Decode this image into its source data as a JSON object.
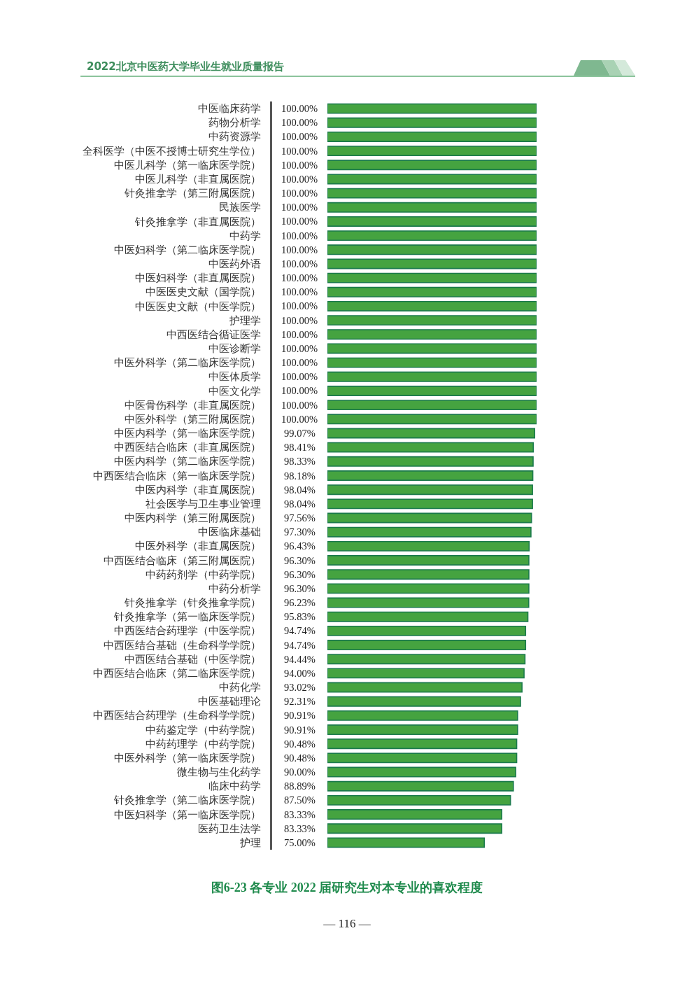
{
  "chart_data": {
    "type": "bar",
    "orientation": "horizontal",
    "title": "图6-23 各专业 2022 届研究生对本专业的喜欢程度",
    "annotations": [
      "2022北京中医药大学毕业生就业质量报告",
      "— 116 —"
    ],
    "categories": [
      "中医临床药学",
      "药物分析学",
      "中药资源学",
      "全科医学（中医不授博士研究生学位）",
      "中医儿科学（第一临床医学院）",
      "中医儿科学（非直属医院）",
      "针灸推拿学（第三附属医院）",
      "民族医学",
      "针灸推拿学（非直属医院）",
      "中药学",
      "中医妇科学（第二临床医学院）",
      "中医药外语",
      "中医妇科学（非直属医院）",
      "中医医史文献（国学院）",
      "中医医史文献（中医学院）",
      "护理学",
      "中西医结合循证医学",
      "中医诊断学",
      "中医外科学（第二临床医学院）",
      "中医体质学",
      "中医文化学",
      "中医骨伤科学（非直属医院）",
      "中医外科学（第三附属医院）",
      "中医内科学（第一临床医学院）",
      "中西医结合临床（非直属医院）",
      "中医内科学（第二临床医学院）",
      "中西医结合临床（第一临床医学院）",
      "中医内科学（非直属医院）",
      "社会医学与卫生事业管理",
      "中医内科学（第三附属医院）",
      "中医临床基础",
      "中医外科学（非直属医院）",
      "中西医结合临床（第三附属医院）",
      "中药药剂学（中药学院）",
      "中药分析学",
      "针灸推拿学（针灸推拿学院）",
      "针灸推拿学（第一临床医学院）",
      "中西医结合药理学（中医学院）",
      "中西医结合基础（生命科学学院）",
      "中西医结合基础（中医学院）",
      "中西医结合临床（第二临床医学院）",
      "中药化学",
      "中医基础理论",
      "中西医结合药理学（生命科学学院）",
      "中药鉴定学（中药学院）",
      "中药药理学（中药学院）",
      "中医外科学（第一临床医学院）",
      "微生物与生化药学",
      "临床中药学",
      "针灸推拿学（第二临床医学院）",
      "中医妇科学（第一临床医学院）",
      "医药卫生法学",
      "护理"
    ],
    "values": [
      100,
      100,
      100,
      100,
      100,
      100,
      100,
      100,
      100,
      100,
      100,
      100,
      100,
      100,
      100,
      100,
      100,
      100,
      100,
      100,
      100,
      100,
      100,
      99.07,
      98.41,
      98.33,
      98.18,
      98.04,
      98.04,
      97.56,
      97.3,
      96.43,
      96.3,
      96.3,
      96.3,
      96.23,
      95.83,
      94.74,
      94.74,
      94.44,
      94,
      93.02,
      92.31,
      90.91,
      90.91,
      90.48,
      90.48,
      90,
      88.89,
      87.5,
      83.33,
      83.33,
      75
    ],
    "value_labels": [
      "100.00%",
      "100.00%",
      "100.00%",
      "100.00%",
      "100.00%",
      "100.00%",
      "100.00%",
      "100.00%",
      "100.00%",
      "100.00%",
      "100.00%",
      "100.00%",
      "100.00%",
      "100.00%",
      "100.00%",
      "100.00%",
      "100.00%",
      "100.00%",
      "100.00%",
      "100.00%",
      "100.00%",
      "100.00%",
      "100.00%",
      "99.07%",
      "98.41%",
      "98.33%",
      "98.18%",
      "98.04%",
      "98.04%",
      "97.56%",
      "97.30%",
      "96.43%",
      "96.30%",
      "96.30%",
      "96.30%",
      "96.23%",
      "95.83%",
      "94.74%",
      "94.74%",
      "94.44%",
      "94.00%",
      "93.02%",
      "92.31%",
      "90.91%",
      "90.91%",
      "90.48%",
      "90.48%",
      "90.00%",
      "88.89%",
      "87.50%",
      "83.33%",
      "83.33%",
      "75.00%"
    ],
    "color": "#45a340",
    "xlim": [
      0,
      100
    ],
    "tick_labels": "y"
  }
}
